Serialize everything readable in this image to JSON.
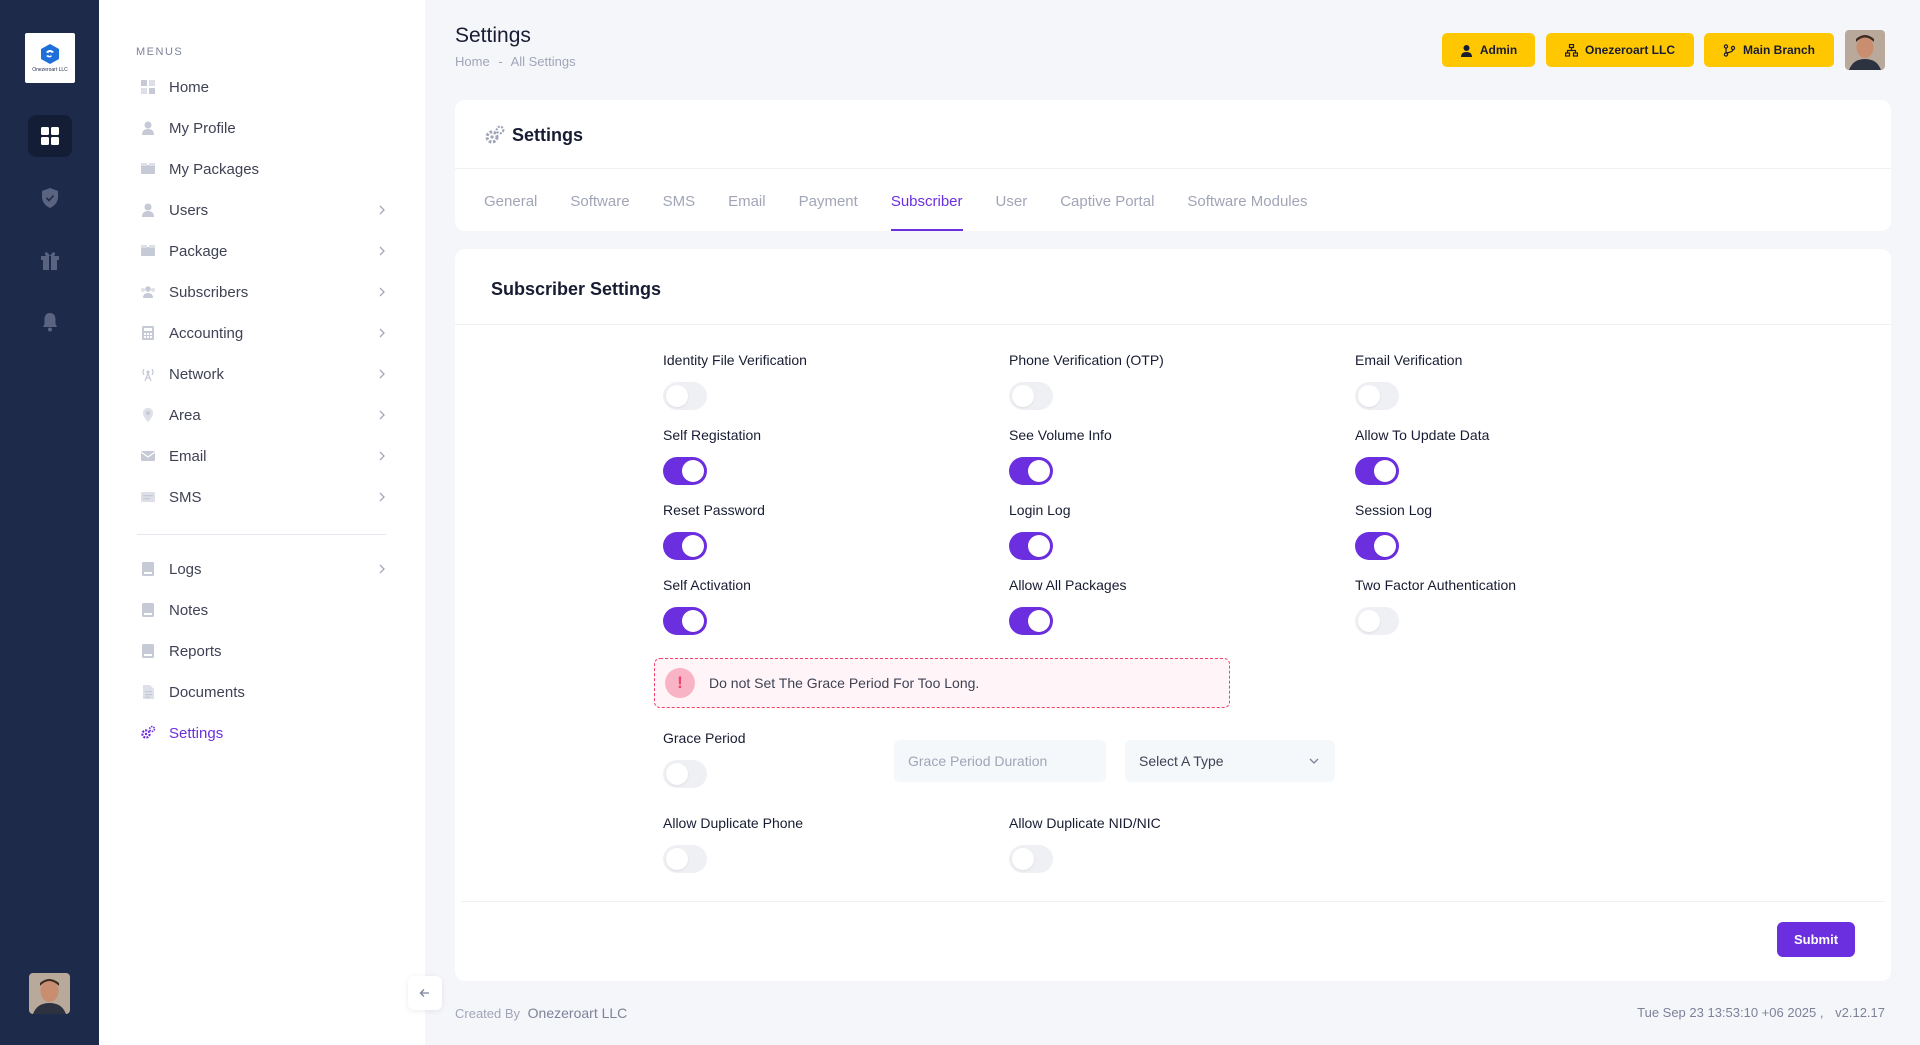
{
  "brand": {
    "logo_text": "Onezeroart LLC"
  },
  "sidebar": {
    "heading": "MENUS",
    "items": [
      {
        "label": "Home",
        "icon": "home-grid-icon"
      },
      {
        "label": "My Profile",
        "icon": "user-icon"
      },
      {
        "label": "My Packages",
        "icon": "packages-icon"
      },
      {
        "label": "Users",
        "icon": "user-icon"
      },
      {
        "label": "Package",
        "icon": "packages-icon"
      },
      {
        "label": "Subscribers",
        "icon": "users-group-icon"
      },
      {
        "label": "Accounting",
        "icon": "calculator-icon"
      },
      {
        "label": "Network",
        "icon": "antenna-icon"
      },
      {
        "label": "Area",
        "icon": "location-icon"
      },
      {
        "label": "Email",
        "icon": "envelope-icon"
      },
      {
        "label": "SMS",
        "icon": "sms-icon"
      },
      {
        "label": "Logs",
        "icon": "log-icon"
      },
      {
        "label": "Notes",
        "icon": "note-icon"
      },
      {
        "label": "Reports",
        "icon": "report-icon"
      },
      {
        "label": "Documents",
        "icon": "document-icon"
      },
      {
        "label": "Settings",
        "icon": "gears-icon"
      }
    ]
  },
  "header": {
    "title": "Settings",
    "breadcrumb": [
      "Home",
      "-",
      "All Settings"
    ],
    "buttons": {
      "admin": "Admin",
      "company": "Onezeroart LLC",
      "branch": "Main Branch"
    }
  },
  "settings_card": {
    "title": "Settings",
    "tabs": [
      "General",
      "Software",
      "SMS",
      "Email",
      "Payment",
      "Subscriber",
      "User",
      "Captive Portal",
      "Software Modules"
    ],
    "active_tab": "Subscriber"
  },
  "subscriber_settings": {
    "title": "Subscriber Settings",
    "toggles": [
      {
        "label": "Identity File Verification",
        "on": false
      },
      {
        "label": "Phone Verification (OTP)",
        "on": false
      },
      {
        "label": "Email Verification",
        "on": false
      },
      {
        "label": "Self Registation",
        "on": true
      },
      {
        "label": "See Volume Info",
        "on": true
      },
      {
        "label": "Allow To Update Data",
        "on": true
      },
      {
        "label": "Reset Password",
        "on": true
      },
      {
        "label": "Login Log",
        "on": true
      },
      {
        "label": "Session Log",
        "on": true
      },
      {
        "label": "Self Activation",
        "on": true
      },
      {
        "label": "Allow All Packages",
        "on": true
      },
      {
        "label": "Two Factor Authentication",
        "on": false
      }
    ],
    "alert": {
      "icon": "!",
      "text": "Do not Set The Grace Period For Too Long."
    },
    "grace_period": {
      "label": "Grace Period",
      "on": false,
      "duration_placeholder": "Grace Period Duration",
      "type_select": "Select A Type"
    },
    "duplicate_phone": {
      "label": "Allow Duplicate Phone",
      "on": false
    },
    "duplicate_nid": {
      "label": "Allow Duplicate NID/NIC",
      "on": false
    },
    "submit_label": "Submit"
  },
  "footer": {
    "created_by": "Created By",
    "company": "Onezeroart LLC",
    "datetime": "Tue Sep 23 13:53:10 +06 2025 ,",
    "version": "v2.12.17"
  },
  "colors": {
    "accent": "#6c2fe0",
    "warning": "#ffc700",
    "rail": "#1e2a4a",
    "danger": "#f1416c"
  }
}
